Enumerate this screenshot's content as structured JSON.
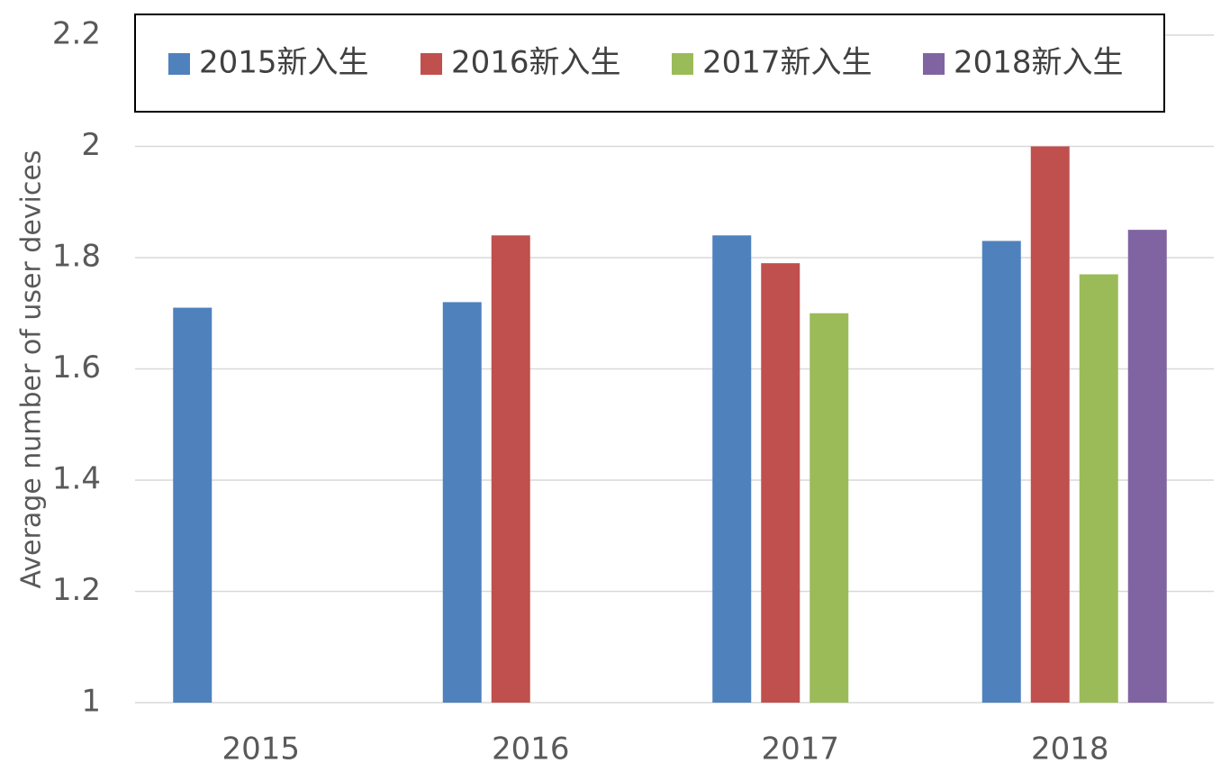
{
  "chart_data": {
    "type": "bar",
    "y_label": "Average number of user devices",
    "categories": [
      "2015",
      "2016",
      "2017",
      "2018"
    ],
    "series": [
      {
        "name": "2015新入生",
        "color": "#4f81bd",
        "values": [
          1.71,
          1.72,
          1.84,
          1.83
        ]
      },
      {
        "name": "2016新入生",
        "color": "#c0504d",
        "values": [
          null,
          1.84,
          1.79,
          2.0
        ]
      },
      {
        "name": "2017新入生",
        "color": "#9bbb59",
        "values": [
          null,
          null,
          1.7,
          1.77
        ]
      },
      {
        "name": "2018新入生",
        "color": "#8064a2",
        "values": [
          null,
          null,
          null,
          1.85
        ]
      }
    ],
    "ylim": [
      1,
      2.2
    ],
    "yticks": [
      1,
      1.2,
      1.4,
      1.6,
      1.8,
      2,
      2.2
    ],
    "grid": true,
    "legend": "top"
  }
}
